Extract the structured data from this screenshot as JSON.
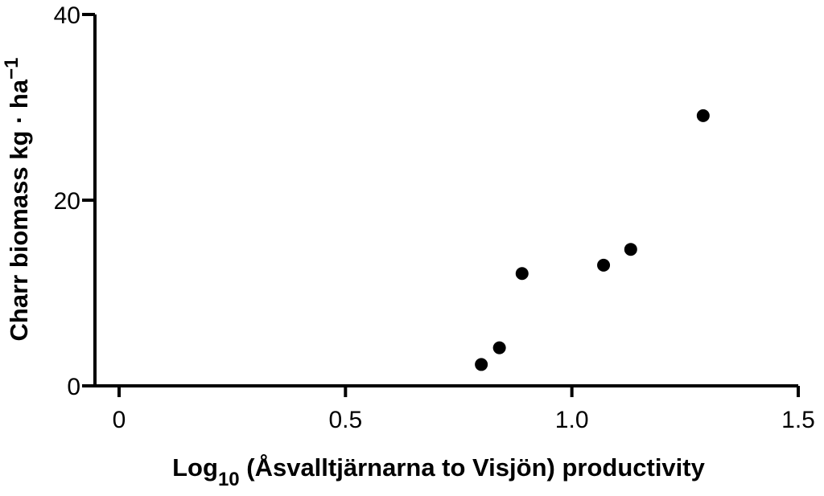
{
  "chart_data": {
    "type": "scatter",
    "xlabel": {
      "prefix": "Log",
      "subscript": "10",
      "rest": " (Åsvalltjärnarna to Visjön) productivity"
    },
    "ylabel": {
      "main": "Charr biomass kg · ha",
      "superscript": "−1"
    },
    "xlim": [
      0,
      1.5
    ],
    "ylim": [
      0,
      40
    ],
    "xticks": [
      0,
      0.5,
      1.0,
      1.5
    ],
    "xtick_labels": [
      "0",
      "0.5",
      "1.0",
      "1.5"
    ],
    "yticks": [
      0,
      20,
      40
    ],
    "ytick_labels": [
      "0",
      "20",
      "40"
    ],
    "grid": false,
    "points": [
      {
        "x": 0.8,
        "y": 2.3
      },
      {
        "x": 0.84,
        "y": 4.1
      },
      {
        "x": 0.89,
        "y": 12.1
      },
      {
        "x": 1.07,
        "y": 13.0
      },
      {
        "x": 1.13,
        "y": 14.7
      },
      {
        "x": 1.29,
        "y": 29.1
      }
    ],
    "marker_color": "#000000"
  }
}
